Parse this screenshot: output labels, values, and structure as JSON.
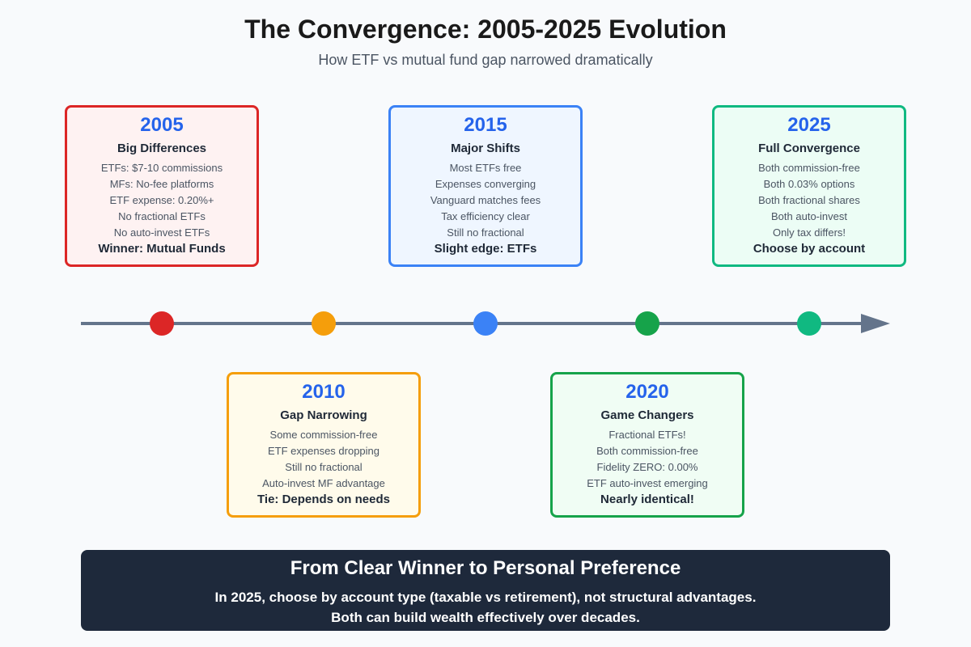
{
  "title": "The Convergence: 2005-2025 Evolution",
  "subtitle": "How ETF vs mutual fund gap narrowed dramatically",
  "milestones": [
    {
      "year": "2005",
      "heading": "Big Differences",
      "items": [
        "ETFs: $7-10 commissions",
        "MFs: No-fee platforms",
        "ETF expense: 0.20%+",
        "No fractional ETFs",
        "No auto-invest ETFs"
      ],
      "verdict": "Winner: Mutual Funds",
      "color": "#dc2626",
      "fill": "#fef2f2"
    },
    {
      "year": "2010",
      "heading": "Gap Narrowing",
      "items": [
        "Some commission-free",
        "ETF expenses dropping",
        "Still no fractional",
        "Auto-invest MF advantage"
      ],
      "verdict": "Tie: Depends on needs",
      "color": "#f59e0b",
      "fill": "#fffbeb"
    },
    {
      "year": "2015",
      "heading": "Major Shifts",
      "items": [
        "Most ETFs free",
        "Expenses converging",
        "Vanguard matches fees",
        "Tax efficiency clear",
        "Still no fractional"
      ],
      "verdict": "Slight edge: ETFs",
      "color": "#3b82f6",
      "fill": "#eff6ff"
    },
    {
      "year": "2020",
      "heading": "Game Changers",
      "items": [
        "Fractional ETFs!",
        "Both commission-free",
        "Fidelity ZERO: 0.00%",
        "ETF auto-invest emerging"
      ],
      "verdict": "Nearly identical!",
      "color": "#16a34a",
      "fill": "#f0fdf4"
    },
    {
      "year": "2025",
      "heading": "Full Convergence",
      "items": [
        "Both commission-free",
        "Both 0.03% options",
        "Both fractional shares",
        "Both auto-invest",
        "Only tax differs!"
      ],
      "verdict": "Choose by account",
      "color": "#10b981",
      "fill": "#ecfdf5"
    }
  ],
  "timeline_color": "#64748b",
  "banner": {
    "title": "From Clear Winner to Personal Preference",
    "lines": [
      "In 2025, choose by account type (taxable vs retirement), not structural advantages.",
      "Both can build wealth effectively over decades."
    ]
  }
}
